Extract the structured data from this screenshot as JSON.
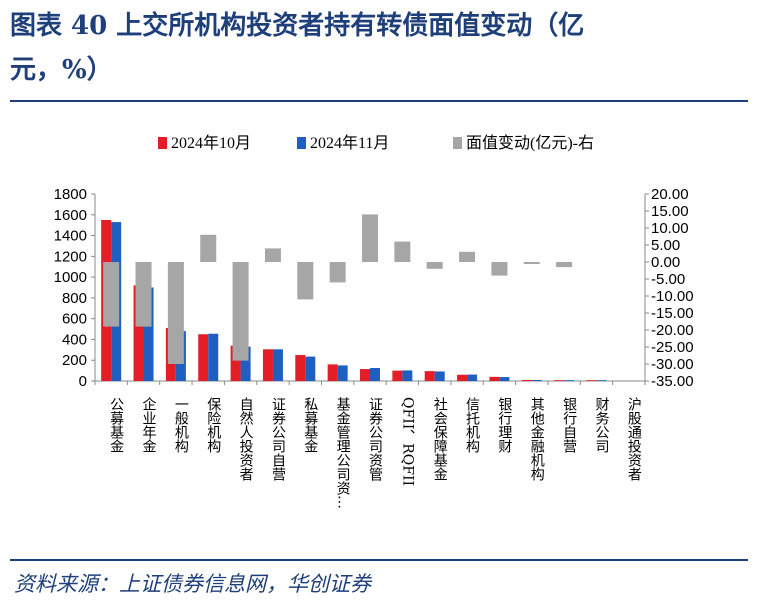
{
  "title": {
    "line1": "图表 40   上交所机构投资者持有转债面值变动（亿",
    "line2": "元，%）"
  },
  "source": "资料来源：上证债券信息网，华创证券",
  "colors": {
    "oct": "#e41e26",
    "nov": "#1f5fbf",
    "change": "#a6a6a6",
    "accent": "#1f3f7a"
  },
  "chart_data": {
    "type": "bar",
    "categories": [
      "公募基金",
      "企业年金",
      "一般机构",
      "保险机构",
      "自然人投资者",
      "证券公司自营",
      "私募基金",
      "基金管理公司资…",
      "证券公司资管",
      "QFII、RQFII",
      "社会保障基金",
      "信托机构",
      "银行理财",
      "其他金融机构",
      "银行自营",
      "财务公司",
      "沪股通投资者"
    ],
    "series": [
      {
        "name": "2024年10月",
        "axis": "left",
        "values": [
          1550,
          920,
          510,
          450,
          340,
          305,
          250,
          160,
          115,
          100,
          95,
          60,
          40,
          10,
          8,
          8,
          0
        ]
      },
      {
        "name": "2024年11月",
        "axis": "left",
        "values": [
          1530,
          900,
          480,
          455,
          330,
          305,
          235,
          150,
          125,
          102,
          92,
          62,
          38,
          10,
          8,
          8,
          0
        ]
      },
      {
        "name": "面值变动(亿元)-右",
        "axis": "right",
        "type": "floating-bar",
        "values": [
          -19,
          -19,
          -30,
          8,
          -29,
          4,
          -11,
          -6,
          14,
          6,
          -2,
          3,
          -4,
          -0.3,
          -1.5,
          0,
          0
        ]
      }
    ],
    "ylim_left": [
      0,
      1800
    ],
    "yticks_left": [
      "0",
      "200",
      "400",
      "600",
      "800",
      "1000",
      "1200",
      "1400",
      "1600",
      "1800"
    ],
    "ylim_right": [
      -35,
      20
    ],
    "yticks_right": [
      "20.00",
      "15.00",
      "10.00",
      "5.00",
      "0.00",
      "-5.00",
      "-10.00",
      "-15.00",
      "-20.00",
      "-25.00",
      "-30.00",
      "-35.00"
    ],
    "legend_position": "top"
  }
}
